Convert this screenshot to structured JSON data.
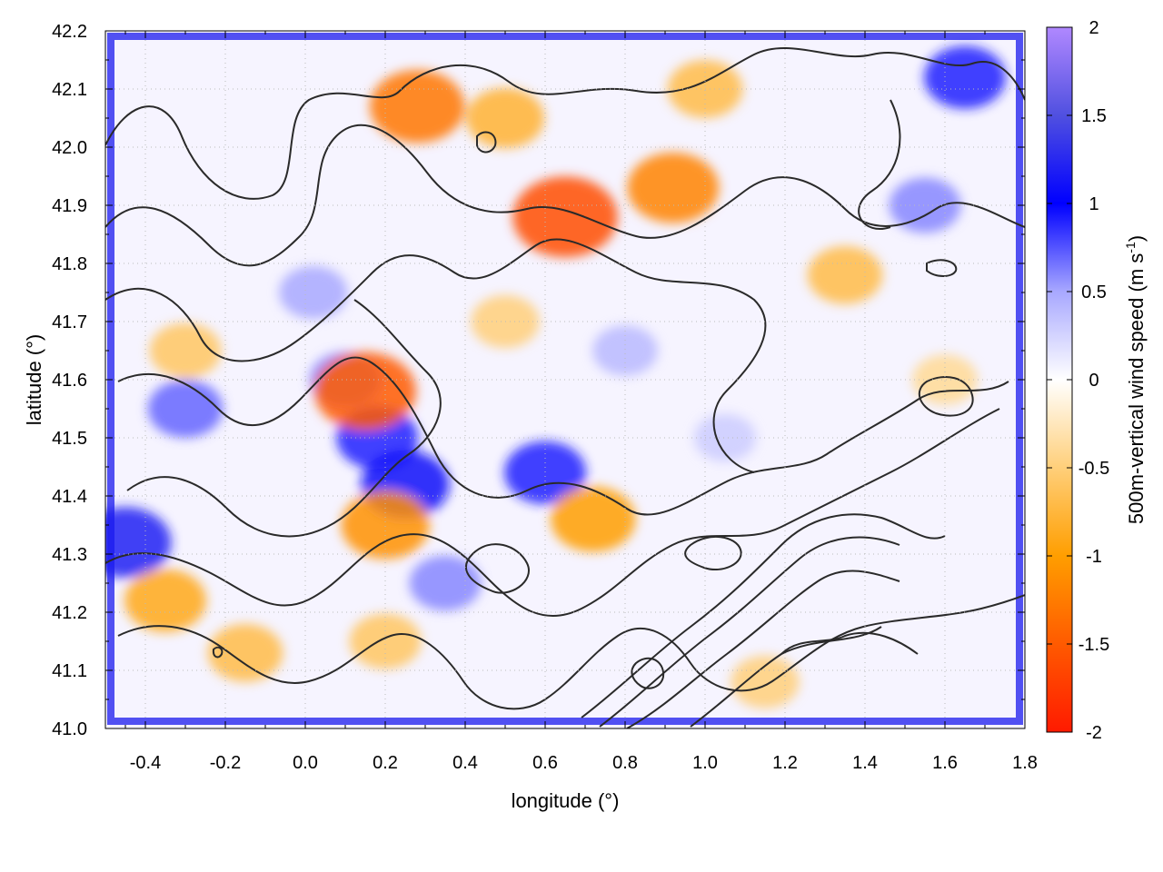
{
  "chart_data": {
    "type": "heatmap",
    "title": "",
    "xlabel": "longitude (°)",
    "ylabel": "latitude (°)",
    "xlim": [
      -0.5,
      1.8
    ],
    "ylim": [
      41.0,
      42.2
    ],
    "x_ticks": [
      "-0.4",
      "-0.2",
      "0.0",
      "0.2",
      "0.4",
      "0.6",
      "0.8",
      "1.0",
      "1.2",
      "1.4",
      "1.6",
      "1.8"
    ],
    "x_tick_values": [
      -0.4,
      -0.2,
      0.0,
      0.2,
      0.4,
      0.6,
      0.8,
      1.0,
      1.2,
      1.4,
      1.6,
      1.8
    ],
    "y_ticks": [
      "41.0",
      "41.1",
      "41.2",
      "41.3",
      "41.4",
      "41.5",
      "41.6",
      "41.7",
      "41.8",
      "41.9",
      "42.0",
      "42.1",
      "42.2"
    ],
    "y_tick_values": [
      41.0,
      41.1,
      41.2,
      41.3,
      41.4,
      41.5,
      41.6,
      41.7,
      41.8,
      41.9,
      42.0,
      42.1,
      42.2
    ],
    "grid": true,
    "colorbar": {
      "label_main": "500m-vertical wind speed (m s",
      "label_sup": "-1",
      "label_close": ")",
      "range": [
        -2,
        2
      ],
      "ticks": [
        "2",
        "1.5",
        "1",
        "0.5",
        "0",
        "-0.5",
        "-1",
        "-1.5",
        "-2"
      ],
      "tick_values": [
        2,
        1.5,
        1,
        0.5,
        0,
        -0.5,
        -1,
        -1.5,
        -2
      ],
      "colormap": [
        {
          "value": -2.0,
          "color": "#ff1a00"
        },
        {
          "value": -1.5,
          "color": "#ff5a00"
        },
        {
          "value": -1.0,
          "color": "#ff9e00"
        },
        {
          "value": -0.5,
          "color": "#ffcf7a"
        },
        {
          "value": 0.0,
          "color": "#ffffff"
        },
        {
          "value": 0.5,
          "color": "#a8a8ff"
        },
        {
          "value": 1.0,
          "color": "#0000ff"
        },
        {
          "value": 1.5,
          "color": "#5050e0"
        },
        {
          "value": 2.0,
          "color": "#b088ff"
        }
      ]
    },
    "features": [
      {
        "lon": 0.1,
        "lat": 41.6,
        "w": 0.6
      },
      {
        "lon": 0.18,
        "lat": 41.5,
        "w": 0.9
      },
      {
        "lon": 0.25,
        "lat": 41.42,
        "w": 1.1
      },
      {
        "lon": 0.6,
        "lat": 41.44,
        "w": 0.9
      },
      {
        "lon": -0.45,
        "lat": 41.32,
        "w": 1.2
      },
      {
        "lon": -0.3,
        "lat": 41.55,
        "w": 0.7
      },
      {
        "lon": 0.02,
        "lat": 41.75,
        "w": 0.5
      },
      {
        "lon": 1.65,
        "lat": 42.12,
        "w": 0.9
      },
      {
        "lon": 1.55,
        "lat": 41.9,
        "w": 0.6
      },
      {
        "lon": 0.8,
        "lat": 41.65,
        "w": 0.4
      },
      {
        "lon": 1.05,
        "lat": 41.5,
        "w": 0.3
      },
      {
        "lon": 0.35,
        "lat": 41.25,
        "w": 0.6
      },
      {
        "lon": 0.65,
        "lat": 41.88,
        "w": -1.6
      },
      {
        "lon": 0.28,
        "lat": 42.07,
        "w": -1.3
      },
      {
        "lon": 0.92,
        "lat": 41.93,
        "w": -1.2
      },
      {
        "lon": 0.5,
        "lat": 42.05,
        "w": -0.8
      },
      {
        "lon": 0.15,
        "lat": 41.58,
        "w": -1.5
      },
      {
        "lon": 0.2,
        "lat": 41.35,
        "w": -1.1
      },
      {
        "lon": -0.35,
        "lat": 41.22,
        "w": -0.9
      },
      {
        "lon": -0.15,
        "lat": 41.13,
        "w": -0.7
      },
      {
        "lon": 0.2,
        "lat": 41.15,
        "w": -0.6
      },
      {
        "lon": 1.0,
        "lat": 42.1,
        "w": -0.7
      },
      {
        "lon": 1.35,
        "lat": 41.78,
        "w": -0.7
      },
      {
        "lon": 1.6,
        "lat": 41.6,
        "w": -0.4
      },
      {
        "lon": -0.3,
        "lat": 41.65,
        "w": -0.6
      },
      {
        "lon": 0.72,
        "lat": 41.36,
        "w": -1.0
      },
      {
        "lon": 1.15,
        "lat": 41.08,
        "w": -0.5
      },
      {
        "lon": 0.5,
        "lat": 41.7,
        "w": -0.5
      }
    ]
  }
}
